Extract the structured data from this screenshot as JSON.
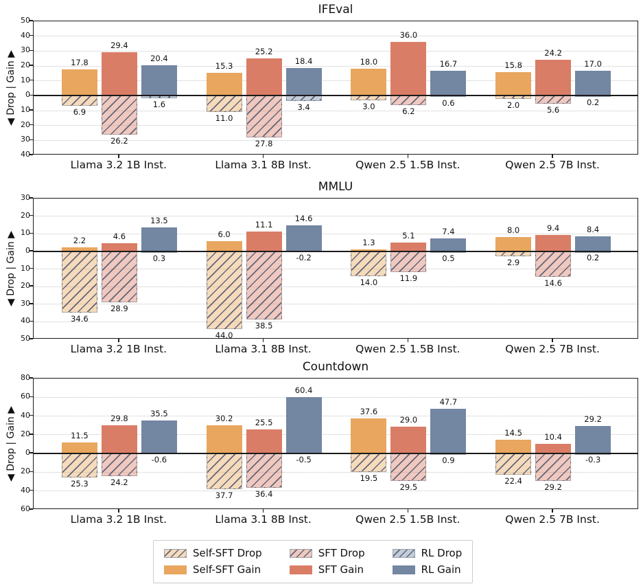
{
  "figure": {
    "background": "#ffffff",
    "y_axis_label": "◀ Drop | Gain ▶",
    "categories": [
      "Llama 3.2 1B Inst.",
      "Llama 3.1 8B Inst.",
      "Qwen 2.5 1.5B Inst.",
      "Qwen 2.5 7B Inst."
    ],
    "colors": {
      "self_sft": "#E8A65F",
      "sft": "#DA7D66",
      "rl": "#7386A2",
      "hatch_line": "#46526A",
      "grid": "#c3c3c3",
      "axis": "#1a1a1a"
    },
    "legend": {
      "items": [
        {
          "label": "Self-SFT Drop",
          "series": "self_sft",
          "kind": "drop"
        },
        {
          "label": "SFT Drop",
          "series": "sft",
          "kind": "drop"
        },
        {
          "label": "RL Drop",
          "series": "rl",
          "kind": "drop"
        },
        {
          "label": "Self-SFT Gain",
          "series": "self_sft",
          "kind": "gain"
        },
        {
          "label": "SFT Gain",
          "series": "sft",
          "kind": "gain"
        },
        {
          "label": "RL Gain",
          "series": "rl",
          "kind": "gain"
        }
      ]
    }
  },
  "chart_data": [
    {
      "type": "bar",
      "title": "IFEval",
      "ylabel": "◀ Drop | Gain ▶",
      "categories": [
        "Llama 3.2 1B Inst.",
        "Llama 3.1 8B Inst.",
        "Qwen 2.5 1.5B Inst.",
        "Qwen 2.5 7B Inst."
      ],
      "ylim": [
        -40,
        50
      ],
      "yticks": [
        50,
        40,
        30,
        20,
        10,
        0,
        -10,
        -20,
        -30,
        -40
      ],
      "grid": true,
      "legend_position": "figure-bottom",
      "series": [
        {
          "name": "Self-SFT",
          "color_key": "self_sft",
          "gain": [
            17.8,
            15.3,
            18.0,
            15.8
          ],
          "drop": [
            6.9,
            11.0,
            3.0,
            2.0
          ]
        },
        {
          "name": "SFT",
          "color_key": "sft",
          "gain": [
            29.4,
            25.2,
            36.0,
            24.2
          ],
          "drop": [
            26.2,
            27.8,
            6.2,
            5.6
          ]
        },
        {
          "name": "RL",
          "color_key": "rl",
          "gain": [
            20.4,
            18.4,
            16.7,
            17.0
          ],
          "drop": [
            1.6,
            3.4,
            0.6,
            0.2
          ]
        }
      ]
    },
    {
      "type": "bar",
      "title": "MMLU",
      "ylabel": "◀ Drop | Gain ▶",
      "categories": [
        "Llama 3.2 1B Inst.",
        "Llama 3.1 8B Inst.",
        "Qwen 2.5 1.5B Inst.",
        "Qwen 2.5 7B Inst."
      ],
      "ylim": [
        -50,
        30
      ],
      "yticks": [
        30,
        20,
        10,
        0,
        -10,
        -20,
        -30,
        -40,
        -50
      ],
      "grid": true,
      "legend_position": "figure-bottom",
      "series": [
        {
          "name": "Self-SFT",
          "color_key": "self_sft",
          "gain": [
            2.2,
            6.0,
            1.3,
            8.0
          ],
          "drop": [
            34.6,
            44.0,
            14.0,
            2.9
          ]
        },
        {
          "name": "SFT",
          "color_key": "sft",
          "gain": [
            4.6,
            11.1,
            5.1,
            9.4
          ],
          "drop": [
            28.9,
            38.5,
            11.9,
            14.6
          ]
        },
        {
          "name": "RL",
          "color_key": "rl",
          "gain": [
            13.5,
            14.6,
            7.4,
            8.4
          ],
          "drop": [
            0.3,
            -0.2,
            0.5,
            0.2
          ]
        }
      ]
    },
    {
      "type": "bar",
      "title": "Countdown",
      "ylabel": "◀ Drop | Gain ▶",
      "categories": [
        "Llama 3.2 1B Inst.",
        "Llama 3.1 8B Inst.",
        "Qwen 2.5 1.5B Inst.",
        "Qwen 2.5 7B Inst."
      ],
      "ylim": [
        -60,
        80
      ],
      "yticks": [
        80,
        60,
        40,
        20,
        0,
        -20,
        -40,
        -60
      ],
      "grid": true,
      "legend_position": "figure-bottom",
      "series": [
        {
          "name": "Self-SFT",
          "color_key": "self_sft",
          "gain": [
            11.5,
            30.2,
            37.6,
            14.5
          ],
          "drop": [
            25.3,
            37.7,
            19.5,
            22.4
          ]
        },
        {
          "name": "SFT",
          "color_key": "sft",
          "gain": [
            29.8,
            25.5,
            29.0,
            10.4
          ],
          "drop": [
            24.2,
            36.4,
            29.5,
            29.2
          ]
        },
        {
          "name": "RL",
          "color_key": "rl",
          "gain": [
            35.5,
            60.4,
            47.7,
            29.2
          ],
          "drop": [
            -0.6,
            -0.5,
            0.9,
            -0.3
          ]
        }
      ]
    }
  ]
}
